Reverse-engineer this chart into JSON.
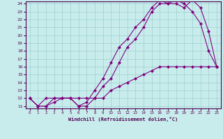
{
  "xlabel": "Windchill (Refroidissement éolien,°C)",
  "bg_color": "#c8ecec",
  "line_color": "#800080",
  "xlim": [
    -0.5,
    23.5
  ],
  "ylim": [
    10.7,
    24.3
  ],
  "xticks": [
    0,
    1,
    2,
    3,
    4,
    5,
    6,
    7,
    8,
    9,
    10,
    11,
    12,
    13,
    14,
    15,
    16,
    17,
    18,
    19,
    20,
    21,
    22,
    23
  ],
  "yticks": [
    11,
    12,
    13,
    14,
    15,
    16,
    17,
    18,
    19,
    20,
    21,
    22,
    23,
    24
  ],
  "grid_color": "#9ecece",
  "line1_x": [
    0,
    1,
    2,
    3,
    4,
    5,
    6,
    7,
    8,
    9,
    10,
    11,
    12,
    13,
    14,
    15,
    16,
    17,
    18,
    19,
    20,
    21,
    22,
    23
  ],
  "line1_y": [
    12,
    11,
    11,
    11.5,
    12,
    12,
    11,
    11,
    12,
    13.5,
    14.5,
    16.5,
    18.5,
    19.5,
    21,
    23,
    24,
    24,
    24,
    23.5,
    24.5,
    23.5,
    20.5,
    16
  ],
  "line2_x": [
    0,
    1,
    2,
    3,
    4,
    5,
    6,
    7,
    8,
    9,
    10,
    11,
    12,
    13,
    14,
    15,
    16,
    17,
    18,
    19,
    20,
    21,
    22,
    23
  ],
  "line2_y": [
    12,
    11,
    11,
    12,
    12,
    12,
    11,
    11.5,
    13,
    14.5,
    16.5,
    18.5,
    19.5,
    21,
    22,
    23.5,
    24.5,
    24,
    24.5,
    24,
    23,
    21.5,
    18,
    16
  ],
  "line3_x": [
    0,
    1,
    2,
    3,
    4,
    5,
    6,
    7,
    8,
    9,
    10,
    11,
    12,
    13,
    14,
    15,
    16,
    17,
    18,
    19,
    20,
    21,
    22,
    23
  ],
  "line3_y": [
    12,
    11,
    12,
    12,
    12,
    12,
    12,
    12,
    12,
    12,
    13,
    13.5,
    14,
    14.5,
    15,
    15.5,
    16,
    16,
    16,
    16,
    16,
    16,
    16,
    16
  ]
}
